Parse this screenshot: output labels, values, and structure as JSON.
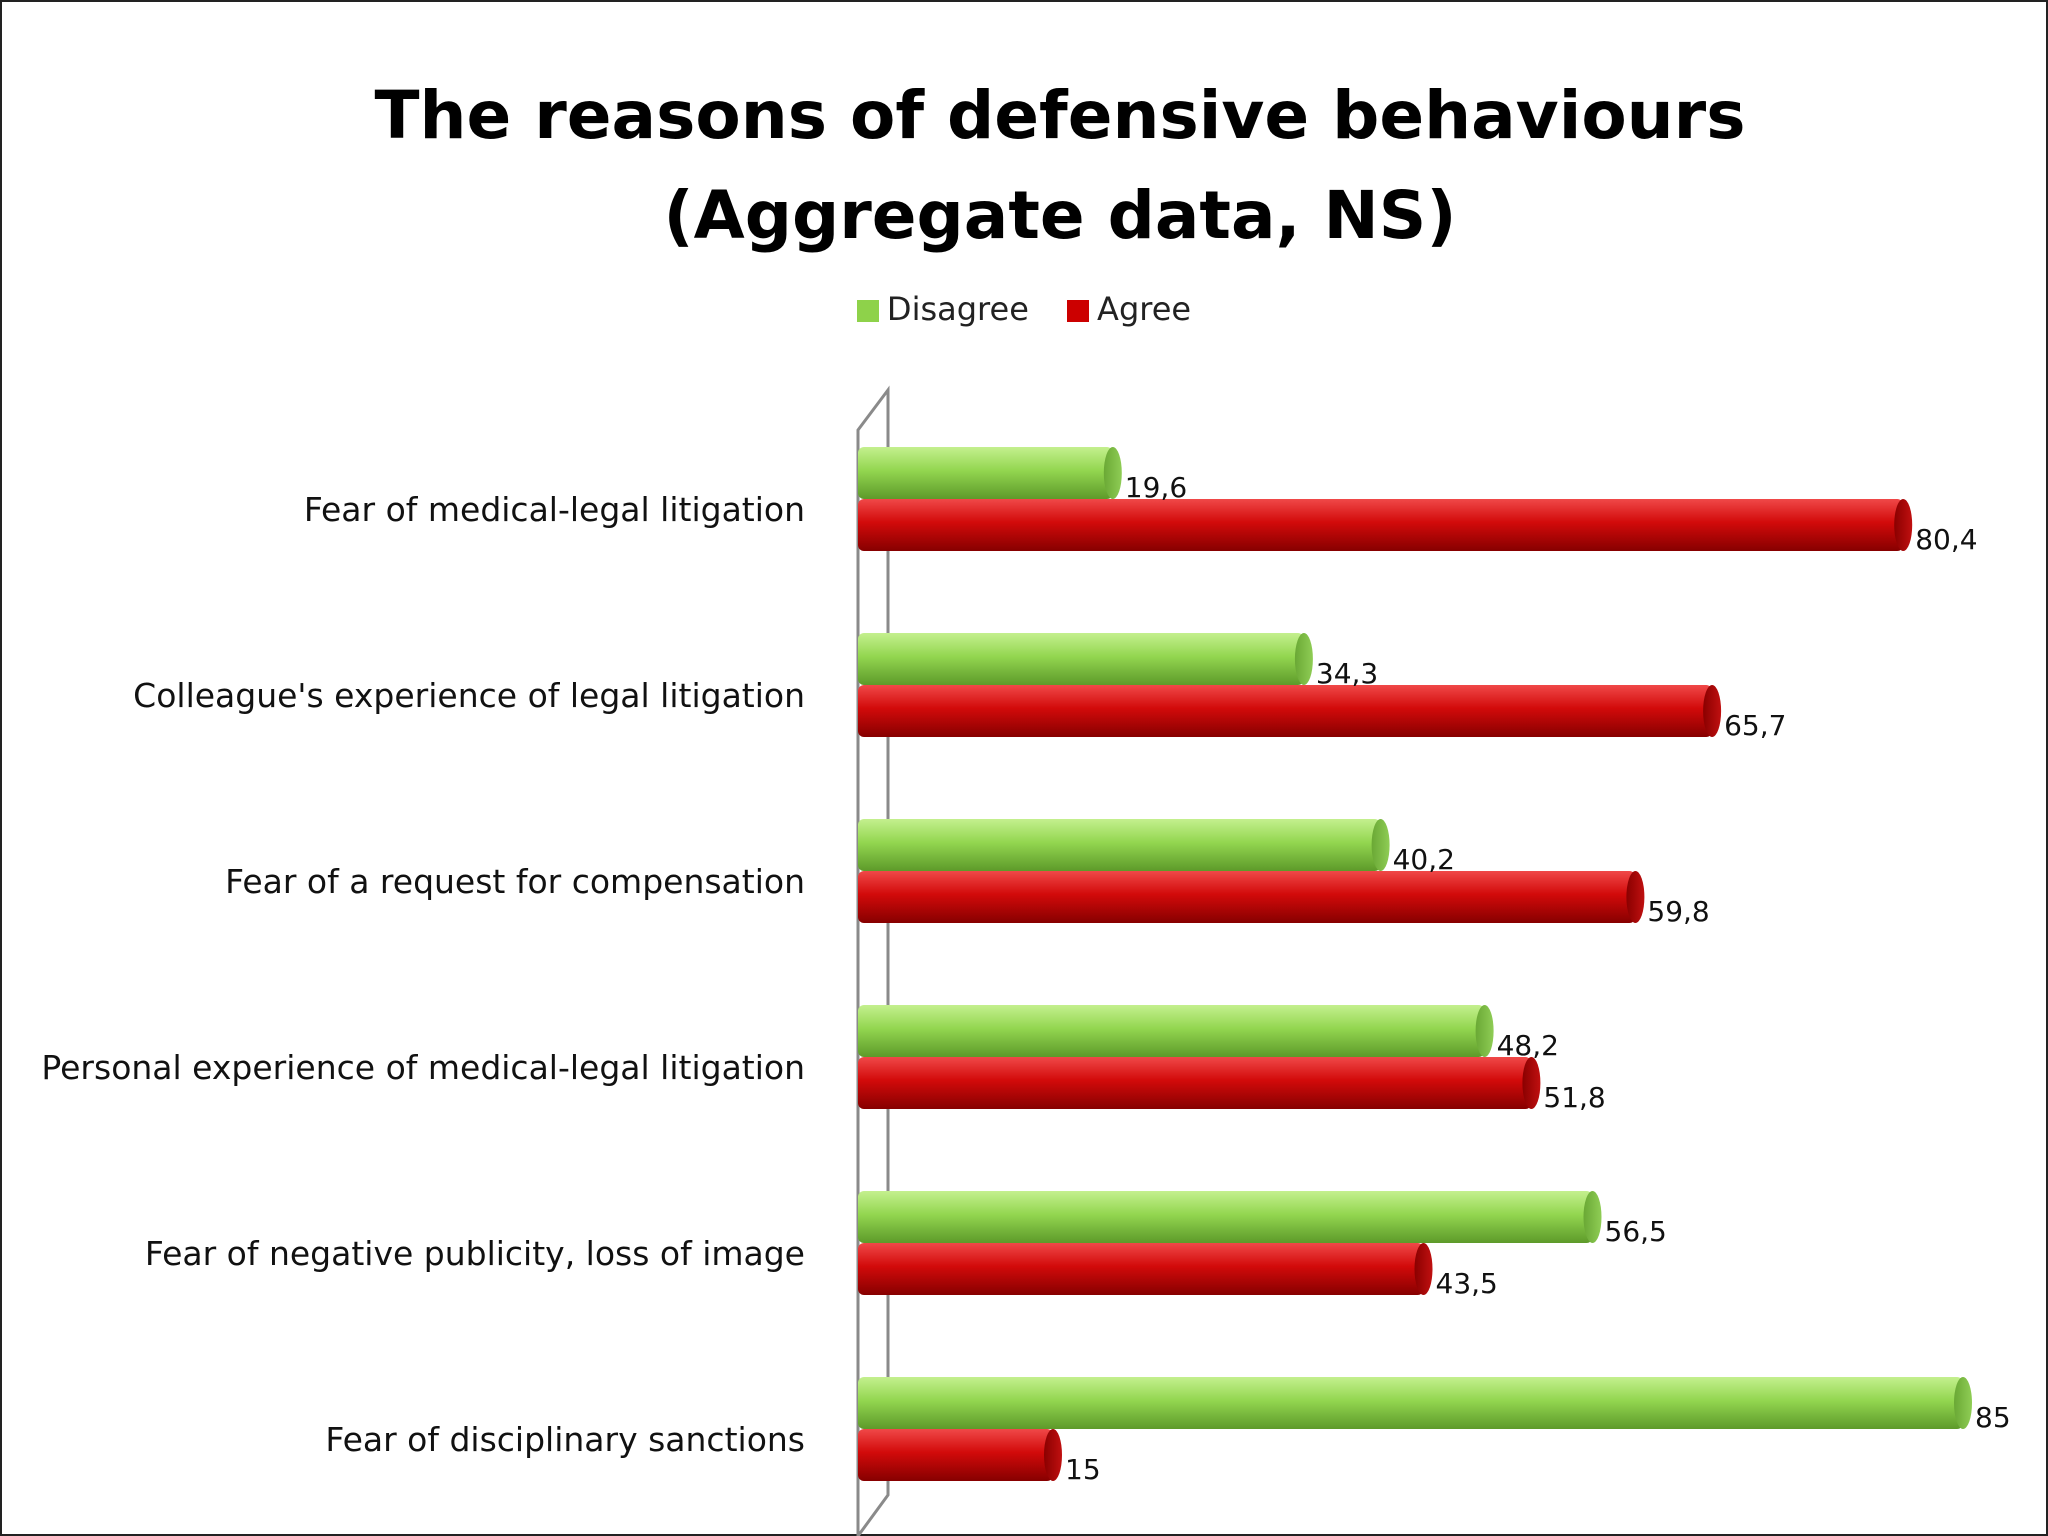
{
  "chart_data": {
    "type": "bar",
    "orientation": "horizontal",
    "title": "The reasons of defensive behaviours (Aggregate data, NS)",
    "categories": [
      "Fear of medical-legal litigation",
      "Colleague's experience of legal litigation",
      "Fear of a request for compensation",
      "Personal experience of medical-legal litigation",
      "Fear of negative publicity, loss of image",
      "Fear of disciplinary sanctions"
    ],
    "series": [
      {
        "name": "Disagree",
        "color": "#8ed24a",
        "values": [
          19.6,
          34.3,
          40.2,
          48.2,
          56.5,
          85
        ],
        "labels": [
          "19,6",
          "34,3",
          "40,2",
          "48,2",
          "56,5",
          "85"
        ]
      },
      {
        "name": "Agree",
        "color": "#cc0000",
        "values": [
          80.4,
          65.7,
          59.8,
          51.8,
          43.5,
          15
        ],
        "labels": [
          "80,4",
          "65,7",
          "59,8",
          "51,8",
          "43,5",
          "15"
        ]
      }
    ],
    "xlim": [
      0,
      100
    ],
    "legend_position": "top",
    "grid": false
  }
}
